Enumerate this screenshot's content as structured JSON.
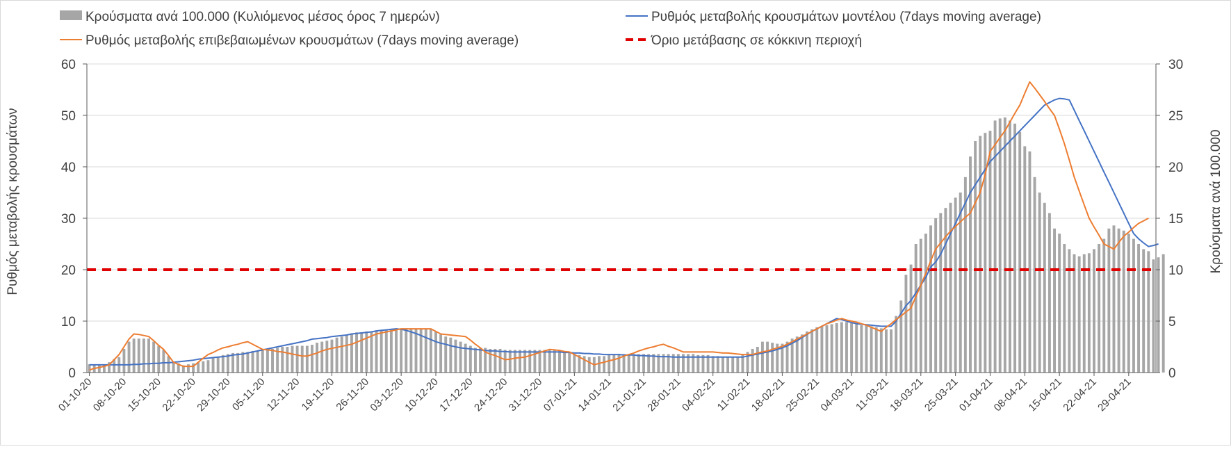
{
  "chart_data": {
    "type": "bar",
    "legend": [
      {
        "label": "Κρούσματα ανά 100.000 (Κυλιόμενος μέσος όρος 7 ημερών)",
        "color": "#a6a6a6",
        "kind": "bar"
      },
      {
        "label": "Ρυθμός μεταβολής κρουσμάτων μοντέλου (7days moving average)",
        "color": "#4472c4",
        "kind": "line"
      },
      {
        "label": "Ρυθμός μεταβολής επιβεβαιωμένων κρουσμάτων (7days moving average)",
        "color": "#ed7d31",
        "kind": "line"
      },
      {
        "label": "Όριο μετάβασης σε κόκκινη περιοχή",
        "color": "#e00000",
        "kind": "dashed"
      }
    ],
    "legend_placement": "top",
    "ylabel_left": "Ρυθμός μεταβολής κρουσμάτων",
    "ylabel_right": "Κρούσματα ανά 100.000",
    "ylim_left": [
      0,
      60
    ],
    "ylim_right": [
      0,
      30
    ],
    "yticks_left": [
      "0",
      "10",
      "20",
      "30",
      "40",
      "50",
      "60"
    ],
    "yticks_right": [
      "0",
      "5",
      "10",
      "15",
      "20",
      "25",
      "30"
    ],
    "grid": true,
    "x_tick_labels": [
      "01-10-20",
      "08-10-20",
      "15-10-20",
      "22-10-20",
      "29-10-20",
      "05-11-20",
      "12-11-20",
      "19-11-20",
      "26-11-20",
      "03-12-20",
      "10-12-20",
      "17-12-20",
      "24-12-20",
      "31-12-20",
      "07-01-21",
      "14-01-21",
      "21-01-21",
      "28-01-21",
      "04-02-21",
      "11-02-21",
      "18-02-21",
      "25-02-21",
      "04-03-21",
      "11-03-21",
      "18-03-21",
      "25-03-21",
      "01-04-21",
      "08-04-21",
      "15-04-21",
      "22-04-21",
      "29-04-21"
    ],
    "num_days": 216,
    "threshold": 20,
    "bars_per_100k": {
      "axis": "right",
      "knots": [
        [
          0,
          0.8
        ],
        [
          3,
          0.8
        ],
        [
          6,
          1.5
        ],
        [
          8,
          3.0
        ],
        [
          9,
          3.3
        ],
        [
          12,
          3.3
        ],
        [
          15,
          2.2
        ],
        [
          17,
          1.0
        ],
        [
          19,
          0.7
        ],
        [
          24,
          1.2
        ],
        [
          28,
          1.8
        ],
        [
          35,
          2.2
        ],
        [
          41,
          2.6
        ],
        [
          44,
          2.6
        ],
        [
          53,
          3.8
        ],
        [
          63,
          4.3
        ],
        [
          69,
          4.2
        ],
        [
          71,
          3.7
        ],
        [
          78,
          2.4
        ],
        [
          85,
          2.2
        ],
        [
          95,
          2.2
        ],
        [
          101,
          1.5
        ],
        [
          108,
          1.8
        ],
        [
          116,
          1.8
        ],
        [
          124,
          1.7
        ],
        [
          130,
          1.5
        ],
        [
          136,
          3.0
        ],
        [
          139,
          2.8
        ],
        [
          144,
          4.0
        ],
        [
          150,
          4.9
        ],
        [
          154,
          4.6
        ],
        [
          156,
          4.4
        ],
        [
          159,
          4.2
        ],
        [
          161,
          5.5
        ],
        [
          163,
          7.0
        ],
        [
          164,
          9.5
        ],
        [
          166,
          12.5
        ],
        [
          168,
          13.5
        ],
        [
          170,
          15.0
        ],
        [
          172,
          16.0
        ],
        [
          174,
          17.0
        ],
        [
          176,
          19.0
        ],
        [
          177,
          21.0
        ],
        [
          178,
          22.5
        ],
        [
          180,
          23.3
        ],
        [
          182,
          24.5
        ],
        [
          184,
          24.8
        ],
        [
          186,
          24.2
        ],
        [
          188,
          22.0
        ],
        [
          190,
          19.0
        ],
        [
          192,
          16.5
        ],
        [
          194,
          14.0
        ],
        [
          196,
          12.5
        ],
        [
          198,
          11.5
        ],
        [
          200,
          11.8
        ],
        [
          203,
          13.5
        ],
        [
          205,
          14.3
        ],
        [
          207,
          13.8
        ],
        [
          209,
          13.0
        ],
        [
          212,
          12.0
        ],
        [
          214,
          11.0
        ],
        [
          216,
          11.5
        ]
      ],
      "values": [
        0.8,
        0.8,
        0.8,
        0.8,
        1.0,
        1.3,
        1.5,
        2.3,
        3.0,
        3.3,
        3.3,
        3.3,
        3.3,
        3.0,
        2.6,
        2.2,
        1.6,
        1.0,
        0.9,
        0.7,
        0.8,
        0.9,
        1.0,
        1.1,
        1.2,
        1.4,
        1.5,
        1.7,
        1.8,
        1.9,
        1.9,
        2.0,
        2.0,
        2.1,
        2.1,
        2.2,
        2.3,
        2.3,
        2.4,
        2.5,
        2.5,
        2.6,
        2.6,
        2.6,
        2.6,
        2.7,
        2.9,
        3.0,
        3.1,
        3.2,
        3.4,
        3.5,
        3.6,
        3.8,
        3.9,
        3.9,
        4.0,
        4.0,
        4.1,
        4.1,
        4.2,
        4.2,
        4.3,
        4.3,
        4.3,
        4.3,
        4.2,
        4.2,
        4.2,
        4.2,
        4.0,
        3.7,
        3.5,
        3.4,
        3.2,
        3.0,
        2.8,
        2.6,
        2.4,
        2.4,
        2.4,
        2.3,
        2.3,
        2.3,
        2.2,
        2.2,
        2.2,
        2.2,
        2.2,
        2.2,
        2.2,
        2.2,
        2.2,
        2.2,
        2.2,
        2.2,
        2.1,
        2.0,
        1.8,
        1.7,
        1.6,
        1.5,
        1.5,
        1.6,
        1.6,
        1.7,
        1.7,
        1.8,
        1.8,
        1.8,
        1.8,
        1.8,
        1.8,
        1.8,
        1.8,
        1.8,
        1.8,
        1.8,
        1.8,
        1.8,
        1.8,
        1.8,
        1.8,
        1.7,
        1.7,
        1.7,
        1.6,
        1.6,
        1.5,
        1.5,
        1.5,
        1.5,
        1.8,
        2.0,
        2.3,
        2.5,
        3.0,
        3.0,
        2.9,
        2.8,
        2.8,
        3.0,
        3.3,
        3.5,
        3.7,
        4.0,
        4.2,
        4.4,
        4.5,
        4.6,
        4.7,
        4.8,
        4.9,
        4.9,
        4.8,
        4.7,
        4.6,
        4.6,
        4.5,
        4.4,
        4.3,
        4.2,
        4.2,
        5.5,
        7.0,
        9.5,
        10.5,
        12.5,
        13.0,
        13.5,
        14.3,
        15.0,
        15.5,
        16.0,
        16.5,
        17.0,
        17.5,
        19.0,
        21.0,
        22.5,
        23.0,
        23.3,
        23.5,
        24.5,
        24.7,
        24.8,
        24.5,
        24.2,
        23.4,
        22.0,
        21.5,
        19.0,
        17.5,
        16.5,
        15.5,
        14.0,
        13.5,
        12.5,
        12.0,
        11.5,
        11.3,
        11.5,
        11.6,
        12.0,
        12.5,
        13.0,
        14.0,
        14.3,
        14.0,
        13.8,
        13.5,
        13.0,
        12.5,
        12.0,
        11.8,
        11.0,
        11.2,
        11.5
      ]
    },
    "model_rate": {
      "axis": "left",
      "knots": [
        [
          0,
          1.5
        ],
        [
          8,
          1.5
        ],
        [
          17,
          2.0
        ],
        [
          30,
          3.5
        ],
        [
          45,
          6.5
        ],
        [
          62,
          8.5
        ],
        [
          71,
          6.0
        ],
        [
          78,
          4.5
        ],
        [
          87,
          4.0
        ],
        [
          95,
          4.0
        ],
        [
          108,
          3.5
        ],
        [
          120,
          3.0
        ],
        [
          133,
          3.0
        ],
        [
          140,
          4.5
        ],
        [
          148,
          8.5
        ],
        [
          152,
          10.5
        ],
        [
          155,
          9.5
        ],
        [
          162,
          9.0
        ],
        [
          166,
          14.0
        ],
        [
          172,
          23.0
        ],
        [
          178,
          35.0
        ],
        [
          184,
          43.0
        ],
        [
          189,
          48.0
        ],
        [
          193,
          52.0
        ],
        [
          196,
          53.3
        ],
        [
          198,
          53.0
        ],
        [
          202,
          45.0
        ],
        [
          207,
          35.0
        ],
        [
          211,
          27.0
        ],
        [
          214,
          24.5
        ],
        [
          216,
          25.0
        ]
      ],
      "values": [
        1.5,
        1.5,
        1.5,
        1.5,
        1.5,
        1.5,
        1.5,
        1.5,
        1.5,
        1.6,
        1.6,
        1.7,
        1.7,
        1.8,
        1.8,
        1.9,
        1.9,
        2.0,
        2.1,
        2.2,
        2.3,
        2.4,
        2.6,
        2.7,
        2.8,
        2.9,
        3.0,
        3.1,
        3.2,
        3.4,
        3.5,
        3.6,
        3.8,
        4.0,
        4.2,
        4.4,
        4.6,
        4.8,
        5.0,
        5.2,
        5.4,
        5.6,
        5.8,
        6.0,
        6.2,
        6.5,
        6.6,
        6.7,
        6.8,
        7.0,
        7.1,
        7.2,
        7.3,
        7.5,
        7.6,
        7.7,
        7.8,
        7.9,
        8.1,
        8.2,
        8.3,
        8.4,
        8.5,
        8.4,
        8.2,
        7.9,
        7.6,
        7.2,
        6.8,
        6.4,
        6.0,
        5.7,
        5.5,
        5.2,
        5.0,
        4.8,
        4.7,
        4.6,
        4.5,
        4.4,
        4.3,
        4.2,
        4.2,
        4.1,
        4.1,
        4.0,
        4.0,
        4.0,
        4.0,
        4.0,
        4.0,
        4.0,
        4.0,
        4.0,
        4.0,
        4.0,
        3.9,
        3.9,
        3.8,
        3.8,
        3.7,
        3.7,
        3.6,
        3.6,
        3.5,
        3.5,
        3.5,
        3.5,
        3.4,
        3.4,
        3.4,
        3.3,
        3.3,
        3.2,
        3.2,
        3.1,
        3.1,
        3.1,
        3.0,
        3.0,
        3.0,
        3.0,
        3.0,
        3.0,
        3.0,
        3.0,
        3.0,
        3.0,
        3.0,
        3.0,
        3.0,
        3.0,
        3.0,
        3.2,
        3.4,
        3.6,
        3.8,
        4.0,
        4.2,
        4.5,
        4.8,
        5.2,
        5.7,
        6.2,
        6.8,
        7.4,
        8.0,
        8.5,
        9.0,
        9.5,
        10.0,
        10.5,
        10.3,
        10.0,
        9.7,
        9.5,
        9.4,
        9.3,
        9.2,
        9.1,
        9.0,
        9.0,
        9.0,
        10.0,
        11.5,
        13.0,
        14.0,
        15.5,
        17.0,
        18.5,
        20.5,
        21.5,
        23.0,
        25.0,
        27.0,
        29.0,
        31.0,
        33.0,
        35.0,
        36.5,
        38.0,
        39.5,
        41.0,
        42.0,
        43.0,
        44.0,
        45.0,
        46.0,
        47.0,
        48.0,
        49.0,
        50.0,
        51.0,
        52.0,
        52.5,
        53.0,
        53.3,
        53.2,
        53.0,
        51.0,
        49.0,
        47.0,
        45.0,
        43.0,
        41.0,
        39.0,
        37.0,
        35.0,
        33.0,
        31.0,
        29.0,
        27.0,
        26.0,
        25.2,
        24.5,
        24.7,
        25.0
      ]
    },
    "confirmed_rate": {
      "axis": "left",
      "knots": [
        [
          0,
          0.5
        ],
        [
          4,
          1.5
        ],
        [
          6,
          3.5
        ],
        [
          8,
          6.5
        ],
        [
          9,
          7.5
        ],
        [
          12,
          7.0
        ],
        [
          15,
          4.5
        ],
        [
          17,
          2.0
        ],
        [
          19,
          1.2
        ],
        [
          21,
          1.2
        ],
        [
          24,
          3.5
        ],
        [
          27,
          4.8
        ],
        [
          32,
          6.0
        ],
        [
          35,
          4.5
        ],
        [
          39,
          4.0
        ],
        [
          44,
          3.2
        ],
        [
          48,
          4.5
        ],
        [
          53,
          5.5
        ],
        [
          58,
          7.5
        ],
        [
          63,
          8.5
        ],
        [
          69,
          8.5
        ],
        [
          71,
          7.5
        ],
        [
          76,
          7.0
        ],
        [
          80,
          4.0
        ],
        [
          84,
          2.5
        ],
        [
          88,
          3.0
        ],
        [
          93,
          4.5
        ],
        [
          97,
          4.0
        ],
        [
          102,
          1.5
        ],
        [
          106,
          2.5
        ],
        [
          112,
          4.5
        ],
        [
          116,
          5.5
        ],
        [
          120,
          4.0
        ],
        [
          124,
          4.0
        ],
        [
          133,
          3.5
        ],
        [
          138,
          4.5
        ],
        [
          144,
          6.0
        ],
        [
          150,
          9.0
        ],
        [
          154,
          10.5
        ],
        [
          158,
          9.5
        ],
        [
          162,
          8.0
        ],
        [
          164,
          9.5
        ],
        [
          168,
          12.5
        ],
        [
          170,
          17.0
        ],
        [
          173,
          24.0
        ],
        [
          176,
          27.5
        ],
        [
          180,
          31.0
        ],
        [
          182,
          35.0
        ],
        [
          184,
          43.0
        ],
        [
          187,
          47.0
        ],
        [
          190,
          52.0
        ],
        [
          192,
          56.5
        ],
        [
          194,
          54.0
        ],
        [
          197,
          50.0
        ],
        [
          199,
          44.5
        ],
        [
          201,
          38.0
        ],
        [
          204,
          30.0
        ],
        [
          207,
          25.0
        ],
        [
          209,
          24.0
        ],
        [
          211,
          26.5
        ],
        [
          214,
          29.0
        ],
        [
          216,
          30.0
        ]
      ],
      "values": [
        0.5,
        0.8,
        1.0,
        1.2,
        1.5,
        2.5,
        3.5,
        5.0,
        6.5,
        7.5,
        7.4,
        7.2,
        7.0,
        6.2,
        5.3,
        4.5,
        3.3,
        2.0,
        1.6,
        1.2,
        1.2,
        1.2,
        2.0,
        2.8,
        3.5,
        3.9,
        4.4,
        4.8,
        5.0,
        5.3,
        5.5,
        5.8,
        6.0,
        5.5,
        5.0,
        4.5,
        4.4,
        4.3,
        4.1,
        4.0,
        3.8,
        3.6,
        3.4,
        3.2,
        3.2,
        3.5,
        3.8,
        4.2,
        4.5,
        4.7,
        4.9,
        5.1,
        5.3,
        5.5,
        5.9,
        6.3,
        6.7,
        7.1,
        7.5,
        7.7,
        7.9,
        8.1,
        8.3,
        8.5,
        8.5,
        8.5,
        8.5,
        8.5,
        8.5,
        8.5,
        8.0,
        7.5,
        7.4,
        7.3,
        7.2,
        7.1,
        7.0,
        6.3,
        5.5,
        4.8,
        4.0,
        3.6,
        3.3,
        2.9,
        2.5,
        2.6,
        2.8,
        2.9,
        3.0,
        3.3,
        3.6,
        3.9,
        4.2,
        4.5,
        4.4,
        4.3,
        4.1,
        4.0,
        3.5,
        3.0,
        2.5,
        2.0,
        1.5,
        1.8,
        2.0,
        2.3,
        2.5,
        2.8,
        3.2,
        3.5,
        3.8,
        4.2,
        4.5,
        4.8,
        5.0,
        5.3,
        5.5,
        5.1,
        4.8,
        4.4,
        4.0,
        4.0,
        4.0,
        4.0,
        4.0,
        4.0,
        4.0,
        3.9,
        3.8,
        3.8,
        3.7,
        3.6,
        3.5,
        3.5,
        3.5,
        3.8,
        4.0,
        4.2,
        4.5,
        4.8,
        5.1,
        5.5,
        6.0,
        6.5,
        7.0,
        7.5,
        8.0,
        8.5,
        9.0,
        9.5,
        9.8,
        10.2,
        10.5,
        10.2,
        10.0,
        9.8,
        9.5,
        9.2,
        8.8,
        8.4,
        8.0,
        8.8,
        9.5,
        10.3,
        11.0,
        11.8,
        12.5,
        14.8,
        17.0,
        19.3,
        21.7,
        24.0,
        25.2,
        26.4,
        27.5,
        28.4,
        29.3,
        30.2,
        31.0,
        33.0,
        35.0,
        38.5,
        43.0,
        44.3,
        45.7,
        47.0,
        48.7,
        50.4,
        52.0,
        54.3,
        56.5,
        55.3,
        54.0,
        52.7,
        51.3,
        50.0,
        47.3,
        44.5,
        41.3,
        38.0,
        35.3,
        32.6,
        30.0,
        28.3,
        26.7,
        25.0,
        24.5,
        24.0,
        25.3,
        26.5,
        27.3,
        28.2,
        29.0,
        29.5,
        30.0
      ]
    }
  }
}
